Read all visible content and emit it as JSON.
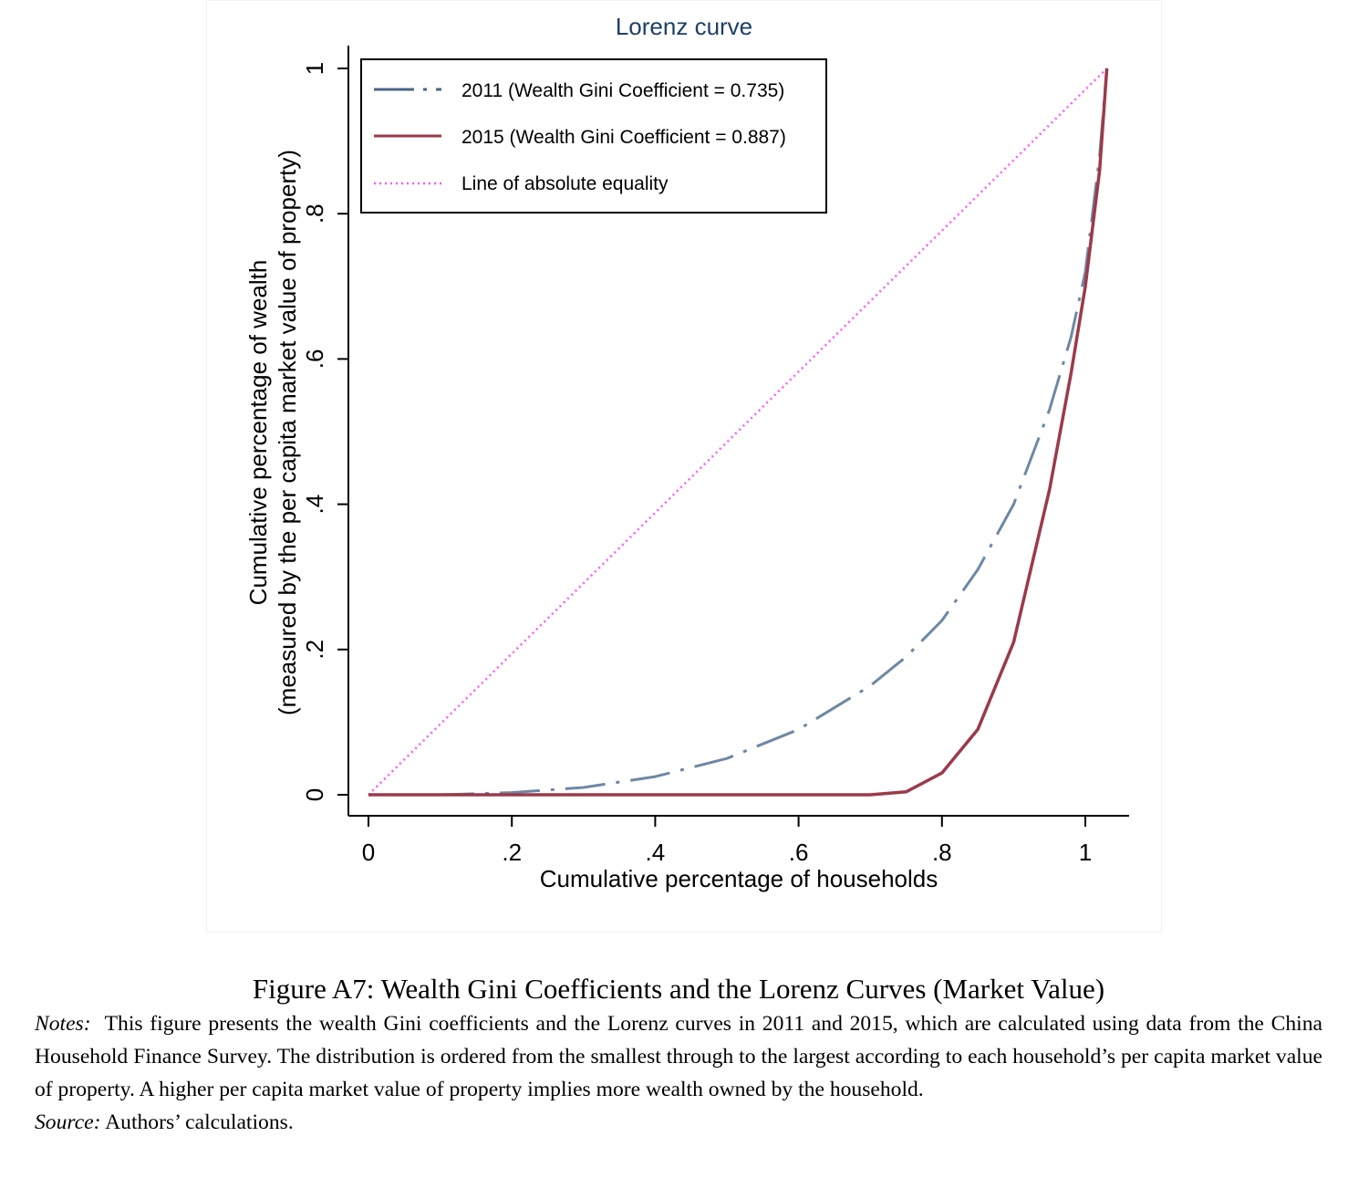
{
  "chart_data": {
    "type": "line",
    "title": "Lorenz curve",
    "xlabel": "Cumulative percentage of households",
    "ylabel_line1": "Cumulative percentage of wealth",
    "ylabel_line2": "(measured by the per capita market value of property)",
    "xlim": [
      0,
      1.05
    ],
    "ylim": [
      0,
      1
    ],
    "xticks": [
      0,
      0.2,
      0.4,
      0.6,
      0.8,
      1
    ],
    "xtick_labels": [
      "0",
      ".2",
      ".4",
      ".6",
      ".8",
      "1"
    ],
    "yticks": [
      0,
      0.2,
      0.4,
      0.6,
      0.8,
      1
    ],
    "ytick_labels": [
      "0",
      ".2",
      ".4",
      ".6",
      ".8",
      "1"
    ],
    "grid": false,
    "legend_position": "top-left",
    "series": [
      {
        "name": "2011 (Wealth Gini Coefficient = 0.735)",
        "style": "dash-dot",
        "color": "#6e88a3",
        "x": [
          0,
          0.1,
          0.2,
          0.3,
          0.4,
          0.5,
          0.6,
          0.7,
          0.75,
          0.8,
          0.85,
          0.9,
          0.95,
          0.98,
          1.0,
          1.02,
          1.03
        ],
        "y": [
          0,
          0,
          0.003,
          0.01,
          0.025,
          0.05,
          0.09,
          0.15,
          0.19,
          0.24,
          0.31,
          0.4,
          0.53,
          0.63,
          0.72,
          0.88,
          1.0
        ]
      },
      {
        "name": "2015 (Wealth Gini Coefficient = 0.887)",
        "style": "solid",
        "color": "#9b3a4a",
        "x": [
          0,
          0.1,
          0.2,
          0.3,
          0.4,
          0.5,
          0.6,
          0.7,
          0.75,
          0.8,
          0.85,
          0.9,
          0.95,
          0.98,
          1.0,
          1.02,
          1.03
        ],
        "y": [
          0,
          0,
          0,
          0,
          0,
          0,
          0,
          0,
          0.004,
          0.03,
          0.09,
          0.21,
          0.42,
          0.58,
          0.7,
          0.86,
          1.0
        ]
      },
      {
        "name": "Line of absolute equality",
        "style": "dotted",
        "color": "#ff55ff",
        "x": [
          0,
          1.03
        ],
        "y": [
          0,
          1.0
        ]
      }
    ]
  },
  "caption": {
    "title": "Figure A7: Wealth Gini Coefficients and the Lorenz Curves (Market Value)",
    "notes_label": "Notes:",
    "notes_text": "This figure presents the wealth Gini coefficients and the Lorenz curves in 2011 and 2015, which are calculated using data from the China Household Finance Survey. The distribution is ordered from the smallest through to the largest according to each household’s per capita market value of property. A higher per capita market value of property implies more wealth owned by the household.",
    "source_label": "Source:",
    "source_text": "Authors’ calculations."
  }
}
